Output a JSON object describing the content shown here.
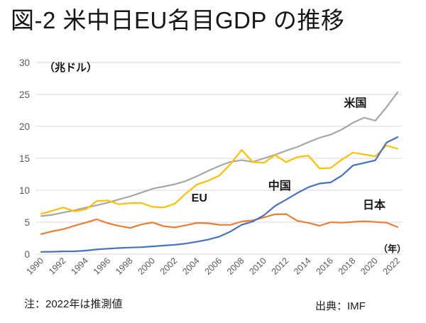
{
  "title": "図-2 米中日EU名目GDP の推移",
  "note": "注：2022年は推測値",
  "source": "出典：IMF",
  "chart_data": {
    "type": "line",
    "title": "図-2 米中日EU名目GDP の推移",
    "unit_label": "（兆ドル）",
    "x_axis_label": "（年）",
    "x": [
      1990,
      1991,
      1992,
      1993,
      1994,
      1995,
      1996,
      1997,
      1998,
      1999,
      2000,
      2001,
      2002,
      2003,
      2004,
      2005,
      2006,
      2007,
      2008,
      2009,
      2010,
      2011,
      2012,
      2013,
      2014,
      2015,
      2016,
      2017,
      2018,
      2019,
      2020,
      2021,
      2022
    ],
    "x_tick_labels": [
      "1990",
      "1992",
      "1994",
      "1996",
      "1998",
      "2000",
      "2002",
      "2004",
      "2006",
      "2008",
      "2010",
      "2012",
      "2014",
      "2016",
      "2018",
      "2020",
      "2022"
    ],
    "ylim": [
      0,
      30
    ],
    "y_ticks": [
      0,
      5,
      10,
      15,
      20,
      25,
      30
    ],
    "grid": "horizontal",
    "legend_position": "inline-annotations",
    "series": [
      {
        "name": "米国",
        "color": "#A6A6A6",
        "label_at": {
          "x": 2018.2,
          "y": 23.7
        },
        "values": [
          5.96,
          6.16,
          6.52,
          6.86,
          7.29,
          7.64,
          8.07,
          8.58,
          9.06,
          9.63,
          10.25,
          10.58,
          10.94,
          11.46,
          12.21,
          13.04,
          13.81,
          14.45,
          14.71,
          14.45,
          15.0,
          15.54,
          16.2,
          16.78,
          17.53,
          18.22,
          18.71,
          19.52,
          20.58,
          21.37,
          20.89,
          23.0,
          25.35
        ]
      },
      {
        "name": "EU",
        "color": "#FFC000",
        "label_at": {
          "x": 2004.2,
          "y": 8.9
        },
        "values": [
          6.3,
          6.8,
          7.3,
          6.7,
          7.0,
          8.3,
          8.4,
          7.8,
          8.0,
          8.0,
          7.4,
          7.3,
          7.9,
          9.5,
          10.9,
          11.5,
          12.3,
          14.1,
          16.3,
          14.4,
          14.3,
          15.5,
          14.4,
          15.2,
          15.4,
          13.4,
          13.5,
          14.8,
          15.9,
          15.6,
          15.3,
          17.0,
          16.5
        ]
      },
      {
        "name": "日本",
        "color": "#ED7D31",
        "label_at": {
          "x": 2019.9,
          "y": 7.8
        },
        "values": [
          3.13,
          3.58,
          3.91,
          4.45,
          4.93,
          5.45,
          4.83,
          4.41,
          4.1,
          4.64,
          4.97,
          4.37,
          4.18,
          4.52,
          4.89,
          4.83,
          4.6,
          4.58,
          5.11,
          5.29,
          5.76,
          6.23,
          6.27,
          5.21,
          4.9,
          4.44,
          5.0,
          4.93,
          5.04,
          5.15,
          5.04,
          4.93,
          4.23
        ]
      },
      {
        "name": "中国",
        "color": "#4472C4",
        "label_at": {
          "x": 2011.4,
          "y": 10.8
        },
        "values": [
          0.36,
          0.38,
          0.43,
          0.44,
          0.56,
          0.73,
          0.86,
          0.96,
          1.03,
          1.09,
          1.21,
          1.34,
          1.47,
          1.66,
          1.96,
          2.29,
          2.75,
          3.55,
          4.59,
          5.1,
          6.09,
          7.55,
          8.53,
          9.57,
          10.48,
          11.06,
          11.23,
          12.31,
          13.89,
          14.28,
          14.69,
          17.46,
          18.32
        ]
      }
    ]
  },
  "colors": {
    "gridline": "#D9D9D9",
    "tick_label": "#595959",
    "text": "#161616",
    "background": "#FFFFFF"
  }
}
